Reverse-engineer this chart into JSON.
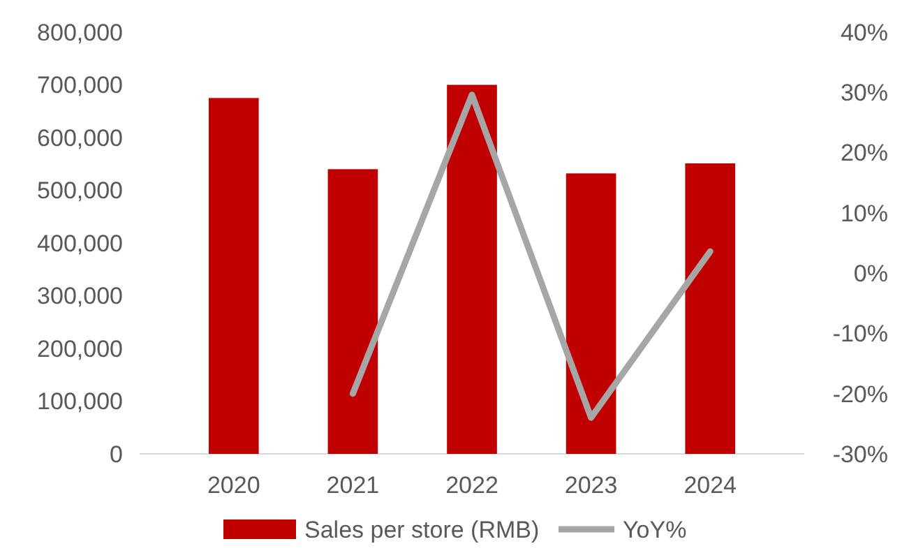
{
  "chart_data": {
    "type": "bar",
    "categories": [
      "2020",
      "2021",
      "2022",
      "2023",
      "2024"
    ],
    "series": [
      {
        "name": "Sales per store (RMB)",
        "color": "#c00000",
        "values": [
          675000,
          540000,
          700000,
          532000,
          551000
        ]
      },
      {
        "name": "YoY%",
        "type": "line",
        "axis": "y2",
        "color": "#a6a6a6",
        "values": [
          null,
          -20,
          29.6,
          -24,
          3.6
        ]
      }
    ],
    "ylim": [
      0,
      800000
    ],
    "yticks": [
      {
        "value": 0,
        "label": "0"
      },
      {
        "value": 100000,
        "label": "100,000"
      },
      {
        "value": 200000,
        "label": "200,000"
      },
      {
        "value": 300000,
        "label": "300,000"
      },
      {
        "value": 400000,
        "label": "400,000"
      },
      {
        "value": 500000,
        "label": "500,000"
      },
      {
        "value": 600000,
        "label": "600,000"
      },
      {
        "value": 700000,
        "label": "700,000"
      },
      {
        "value": 800000,
        "label": "800,000"
      }
    ],
    "y2lim": [
      -30,
      40
    ],
    "y2ticks": [
      {
        "value": -30,
        "label": "-30%"
      },
      {
        "value": -20,
        "label": "-20%"
      },
      {
        "value": -10,
        "label": "-10%"
      },
      {
        "value": 0,
        "label": "0%"
      },
      {
        "value": 10,
        "label": "10%"
      },
      {
        "value": 20,
        "label": "20%"
      },
      {
        "value": 30,
        "label": "30%"
      },
      {
        "value": 40,
        "label": "40%"
      }
    ],
    "grid": false,
    "legend": "bottom",
    "marker": "none",
    "line_style": "solid"
  }
}
